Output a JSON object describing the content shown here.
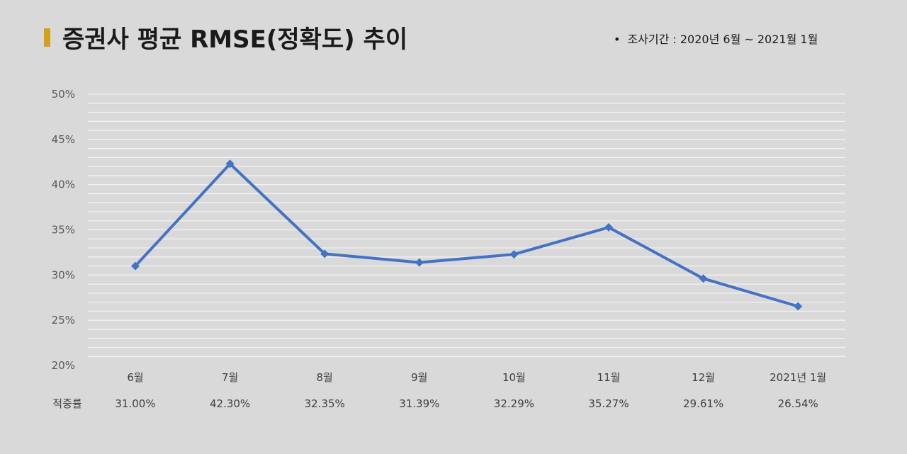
{
  "title": "증권사 평균 RMSE(정확도) 추이",
  "period": {
    "bullet": "•",
    "text": "조사기간 : 2020년 6월 ~ 2021월 1월"
  },
  "chart_data": {
    "type": "line",
    "title": "증권사 평균 RMSE(정확도) 추이",
    "categories": [
      "6월",
      "7월",
      "8월",
      "9월",
      "10월",
      "11월",
      "12월",
      "2021년 1월"
    ],
    "values": [
      31.0,
      42.3,
      32.35,
      31.39,
      32.29,
      35.27,
      29.61,
      26.54
    ],
    "value_labels": [
      "31.00%",
      "42.30%",
      "32.35%",
      "31.39%",
      "32.29%",
      "35.27%",
      "29.61%",
      "26.54%"
    ],
    "row_label": "적중률",
    "ylim": [
      20,
      50
    ],
    "yticks": [
      20,
      25,
      30,
      35,
      40,
      45,
      50
    ],
    "ytick_labels": [
      "20%",
      "25%",
      "30%",
      "35%",
      "40%",
      "45%",
      "50%"
    ],
    "minor_grid_step": 1,
    "grid": true,
    "line_color": "#4472c4",
    "marker": "diamond"
  }
}
